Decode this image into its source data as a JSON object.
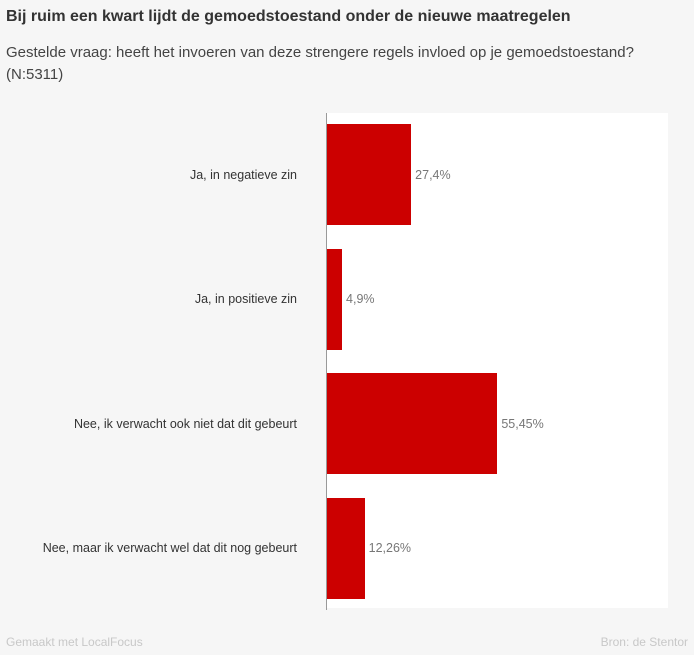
{
  "title": "Bij ruim een kwart lijdt de gemoedstoestand onder de nieuwe maatregelen",
  "subtitle": "Gestelde vraag: heeft het invoeren van deze strengere regels invloed op je gemoedstoestand? (N:5311)",
  "footer": {
    "left": "Gemaakt met LocalFocus",
    "right": "Bron: de Stentor"
  },
  "chart_data": {
    "type": "bar",
    "orientation": "horizontal",
    "categories": [
      "Ja, in negatieve zin",
      "Ja, in positieve zin",
      "Nee, ik verwacht ook niet dat dit gebeurt",
      "Nee, maar ik verwacht wel dat dit nog gebeurt"
    ],
    "values": [
      27.4,
      4.9,
      55.45,
      12.26
    ],
    "value_labels": [
      "27,4%",
      "4,9%",
      "55,45%",
      "12,26%"
    ],
    "unit": "%",
    "xlim": [
      0,
      111
    ],
    "grid": false,
    "bar_color": "#cc0000"
  }
}
